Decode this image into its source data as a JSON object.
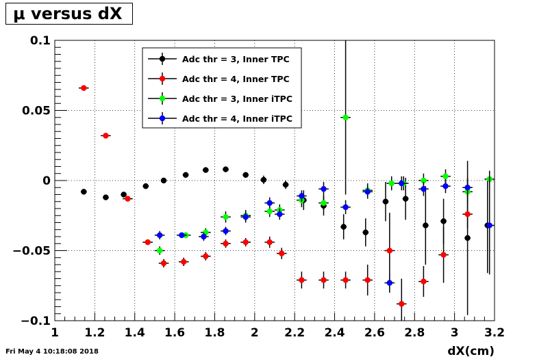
{
  "title": "μ versus dX",
  "timestamp": "Fri May  4 10:18:08 2018",
  "chart_data": {
    "type": "scatter",
    "title": "μ versus dX",
    "xlabel": "dX(cm)",
    "ylabel": "",
    "xlim": [
      1,
      3.2
    ],
    "ylim": [
      -0.1,
      0.1
    ],
    "grid": true,
    "legend_position": "top-left",
    "x_ticks": [
      {
        "value": 1,
        "label": "1"
      },
      {
        "value": 1.2,
        "label": "1.2"
      },
      {
        "value": 1.4,
        "label": "1.4"
      },
      {
        "value": 1.6,
        "label": "1.6"
      },
      {
        "value": 1.8,
        "label": "1.8"
      },
      {
        "value": 2,
        "label": "2"
      },
      {
        "value": 2.2,
        "label": "2.2"
      },
      {
        "value": 2.4,
        "label": "2.4"
      },
      {
        "value": 2.6,
        "label": "2.6"
      },
      {
        "value": 2.8,
        "label": "2.8"
      },
      {
        "value": 3,
        "label": "3"
      },
      {
        "value": 3.2,
        "label": "3.2"
      }
    ],
    "y_ticks": [
      {
        "value": 0.1,
        "label": "0.1"
      },
      {
        "value": 0.05,
        "label": "0.05"
      },
      {
        "value": 0,
        "label": "0"
      },
      {
        "value": -0.05,
        "label": "−0.05"
      },
      {
        "value": -0.1,
        "label": "−0.1"
      }
    ],
    "series": [
      {
        "name": "Adc thr = 3, Inner TPC",
        "color": "#000000",
        "points": [
          {
            "x": 1.145,
            "y": -0.008,
            "xerr": 0.015,
            "yerr": 0.0
          },
          {
            "x": 1.255,
            "y": -0.012,
            "xerr": 0.015,
            "yerr": 0.0
          },
          {
            "x": 1.345,
            "y": -0.01,
            "xerr": 0.015,
            "yerr": 0.001
          },
          {
            "x": 1.455,
            "y": -0.004,
            "xerr": 0.015,
            "yerr": 0.001
          },
          {
            "x": 1.545,
            "y": 0.0,
            "xerr": 0.015,
            "yerr": 0.001
          },
          {
            "x": 1.655,
            "y": 0.004,
            "xerr": 0.015,
            "yerr": 0.001
          },
          {
            "x": 1.755,
            "y": 0.0075,
            "xerr": 0.015,
            "yerr": 0.001
          },
          {
            "x": 1.855,
            "y": 0.008,
            "xerr": 0.015,
            "yerr": 0.001
          },
          {
            "x": 1.955,
            "y": 0.004,
            "xerr": 0.015,
            "yerr": 0.0015
          },
          {
            "x": 2.045,
            "y": 0.0005,
            "xerr": 0.015,
            "yerr": 0.003
          },
          {
            "x": 2.155,
            "y": -0.003,
            "xerr": 0.015,
            "yerr": 0.003
          },
          {
            "x": 2.245,
            "y": -0.014,
            "xerr": 0.015,
            "yerr": 0.007
          },
          {
            "x": 2.345,
            "y": -0.018,
            "xerr": 0.015,
            "yerr": 0.007
          },
          {
            "x": 2.445,
            "y": -0.033,
            "xerr": 0.015,
            "yerr": 0.009
          },
          {
            "x": 2.555,
            "y": -0.037,
            "xerr": 0.015,
            "yerr": 0.01
          },
          {
            "x": 2.655,
            "y": -0.015,
            "xerr": 0.015,
            "yerr": 0.014
          },
          {
            "x": 2.755,
            "y": -0.013,
            "xerr": 0.015,
            "yerr": 0.015
          },
          {
            "x": 2.855,
            "y": -0.032,
            "xerr": 0.015,
            "yerr": 0.028
          },
          {
            "x": 2.945,
            "y": -0.029,
            "xerr": 0.015,
            "yerr": 0.016
          },
          {
            "x": 3.065,
            "y": -0.041,
            "xerr": 0.015,
            "yerr": 0.055
          },
          {
            "x": 3.165,
            "y": -0.032,
            "xerr": 0.015,
            "yerr": 0.034
          }
        ]
      },
      {
        "name": "Adc thr = 4, Inner TPC",
        "color": "#ff0000",
        "points": [
          {
            "x": 1.145,
            "y": 0.066,
            "xerr": 0.025,
            "yerr": 0.0
          },
          {
            "x": 1.255,
            "y": 0.032,
            "xerr": 0.025,
            "yerr": 0.0
          },
          {
            "x": 1.365,
            "y": -0.013,
            "xerr": 0.025,
            "yerr": 0.001
          },
          {
            "x": 1.465,
            "y": -0.044,
            "xerr": 0.025,
            "yerr": 0.001
          },
          {
            "x": 1.545,
            "y": -0.059,
            "xerr": 0.025,
            "yerr": 0.003
          },
          {
            "x": 1.645,
            "y": -0.058,
            "xerr": 0.025,
            "yerr": 0.003
          },
          {
            "x": 1.755,
            "y": -0.054,
            "xerr": 0.025,
            "yerr": 0.003
          },
          {
            "x": 1.855,
            "y": -0.045,
            "xerr": 0.025,
            "yerr": 0.003
          },
          {
            "x": 1.955,
            "y": -0.044,
            "xerr": 0.025,
            "yerr": 0.003
          },
          {
            "x": 2.075,
            "y": -0.044,
            "xerr": 0.025,
            "yerr": 0.004
          },
          {
            "x": 2.135,
            "y": -0.052,
            "xerr": 0.025,
            "yerr": 0.004
          },
          {
            "x": 2.235,
            "y": -0.071,
            "xerr": 0.025,
            "yerr": 0.006
          },
          {
            "x": 2.345,
            "y": -0.071,
            "xerr": 0.025,
            "yerr": 0.006
          },
          {
            "x": 2.455,
            "y": -0.071,
            "xerr": 0.025,
            "yerr": 0.006
          },
          {
            "x": 2.565,
            "y": -0.071,
            "xerr": 0.025,
            "yerr": 0.011
          },
          {
            "x": 2.675,
            "y": -0.05,
            "xerr": 0.025,
            "yerr": 0.027
          },
          {
            "x": 2.735,
            "y": -0.088,
            "xerr": 0.025,
            "yerr": 0.018
          },
          {
            "x": 2.845,
            "y": -0.072,
            "xerr": 0.025,
            "yerr": 0.011
          },
          {
            "x": 2.945,
            "y": -0.053,
            "xerr": 0.025,
            "yerr": 0.02
          },
          {
            "x": 3.065,
            "y": -0.024,
            "xerr": 0.025,
            "yerr": 0.01
          }
        ]
      },
      {
        "name": "Adc thr = 3, Inner iTPC",
        "color": "#00ff00",
        "points": [
          {
            "x": 1.525,
            "y": -0.05,
            "xerr": 0.025,
            "yerr": 0.003
          },
          {
            "x": 1.655,
            "y": -0.039,
            "xerr": 0.025,
            "yerr": 0.002
          },
          {
            "x": 1.755,
            "y": -0.037,
            "xerr": 0.025,
            "yerr": 0.003
          },
          {
            "x": 1.855,
            "y": -0.026,
            "xerr": 0.025,
            "yerr": 0.004
          },
          {
            "x": 1.955,
            "y": -0.025,
            "xerr": 0.025,
            "yerr": 0.004
          },
          {
            "x": 2.075,
            "y": -0.022,
            "xerr": 0.025,
            "yerr": 0.004
          },
          {
            "x": 2.125,
            "y": -0.021,
            "xerr": 0.025,
            "yerr": 0.004
          },
          {
            "x": 2.235,
            "y": -0.014,
            "xerr": 0.025,
            "yerr": 0.005
          },
          {
            "x": 2.345,
            "y": -0.016,
            "xerr": 0.025,
            "yerr": 0.005
          },
          {
            "x": 2.455,
            "y": 0.045,
            "xerr": 0.025,
            "yerr": 0.055
          },
          {
            "x": 2.565,
            "y": -0.007,
            "xerr": 0.025,
            "yerr": 0.005
          },
          {
            "x": 2.685,
            "y": -0.002,
            "xerr": 0.025,
            "yerr": 0.005
          },
          {
            "x": 2.745,
            "y": -0.002,
            "xerr": 0.025,
            "yerr": 0.005
          },
          {
            "x": 2.845,
            "y": 0.0,
            "xerr": 0.025,
            "yerr": 0.005
          },
          {
            "x": 2.955,
            "y": 0.003,
            "xerr": 0.025,
            "yerr": 0.005
          },
          {
            "x": 3.065,
            "y": -0.008,
            "xerr": 0.025,
            "yerr": 0.007
          },
          {
            "x": 3.175,
            "y": 0.001,
            "xerr": 0.025,
            "yerr": 0.006
          }
        ]
      },
      {
        "name": "Adc thr = 4, Inner iTPC",
        "color": "#0000ff",
        "points": [
          {
            "x": 1.525,
            "y": -0.039,
            "xerr": 0.025,
            "yerr": 0.003
          },
          {
            "x": 1.635,
            "y": -0.039,
            "xerr": 0.025,
            "yerr": 0.002
          },
          {
            "x": 1.745,
            "y": -0.04,
            "xerr": 0.025,
            "yerr": 0.003
          },
          {
            "x": 1.855,
            "y": -0.036,
            "xerr": 0.025,
            "yerr": 0.003
          },
          {
            "x": 1.955,
            "y": -0.026,
            "xerr": 0.025,
            "yerr": 0.004
          },
          {
            "x": 2.075,
            "y": -0.016,
            "xerr": 0.025,
            "yerr": 0.004
          },
          {
            "x": 2.125,
            "y": -0.024,
            "xerr": 0.025,
            "yerr": 0.004
          },
          {
            "x": 2.235,
            "y": -0.011,
            "xerr": 0.025,
            "yerr": 0.004
          },
          {
            "x": 2.345,
            "y": -0.006,
            "xerr": 0.025,
            "yerr": 0.005
          },
          {
            "x": 2.455,
            "y": -0.019,
            "xerr": 0.025,
            "yerr": 0.005
          },
          {
            "x": 2.565,
            "y": -0.008,
            "xerr": 0.025,
            "yerr": 0.005
          },
          {
            "x": 2.675,
            "y": -0.073,
            "xerr": 0.025,
            "yerr": 0.007
          },
          {
            "x": 2.735,
            "y": -0.002,
            "xerr": 0.025,
            "yerr": 0.005
          },
          {
            "x": 2.845,
            "y": -0.006,
            "xerr": 0.025,
            "yerr": 0.005
          },
          {
            "x": 2.955,
            "y": -0.004,
            "xerr": 0.025,
            "yerr": 0.005
          },
          {
            "x": 3.065,
            "y": -0.005,
            "xerr": 0.025,
            "yerr": 0.007
          },
          {
            "x": 3.175,
            "y": -0.032,
            "xerr": 0.025,
            "yerr": 0.035
          }
        ]
      }
    ]
  }
}
